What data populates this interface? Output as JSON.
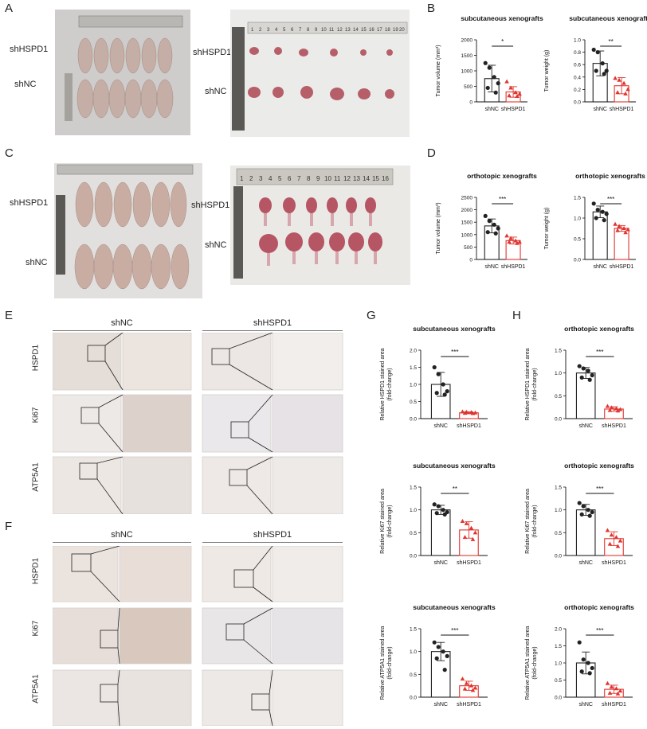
{
  "panels": {
    "A": "A",
    "B": "B",
    "C": "C",
    "D": "D",
    "E": "E",
    "F": "F",
    "G": "G",
    "H": "H"
  },
  "photo_labels": {
    "shHSPD1": "shHSPD1",
    "shNC": "shNC"
  },
  "ruler_numbers": [
    "1",
    "2",
    "3",
    "4",
    "5",
    "6",
    "7",
    "8",
    "9",
    "10",
    "11",
    "12",
    "13",
    "14",
    "15",
    "16",
    "17",
    "18",
    "19",
    "20"
  ],
  "ihc": {
    "headers": [
      "shNC",
      "shHSPD1"
    ],
    "rows": [
      "HSPD1",
      "Ki67",
      "ATP5A1"
    ]
  },
  "colors": {
    "shNC": "#222222",
    "shHSPD1": "#e0342f",
    "tissue_bg": "#e9e2dc",
    "tissue_dark": "#c9b9ad",
    "mouse": "#c9b0a8",
    "tumor": "#b65563"
  },
  "chart_data": [
    {
      "id": "B1",
      "type": "bar",
      "title": "subcutaneous xenografts",
      "ylabel": "Tumor volume (mm³)",
      "categories": [
        "shNC",
        "shHSPD1"
      ],
      "values": [
        750,
        320
      ],
      "errors": [
        430,
        170
      ],
      "ylim": [
        0,
        2000
      ],
      "yticks": [
        "0",
        "500",
        "1000",
        "1500",
        "2000"
      ],
      "significance": "*",
      "points": [
        [
          1250,
          1100,
          800,
          600,
          450,
          300
        ],
        [
          650,
          450,
          300,
          250,
          200,
          180
        ]
      ]
    },
    {
      "id": "B2",
      "type": "bar",
      "title": "subcutaneous xenografts",
      "ylabel": "Tumor weight (g)",
      "categories": [
        "shNC",
        "shHSPD1"
      ],
      "values": [
        0.62,
        0.26
      ],
      "errors": [
        0.2,
        0.13
      ],
      "ylim": [
        0,
        1.0
      ],
      "yticks": [
        "0.0",
        "0.2",
        "0.4",
        "0.6",
        "0.8",
        "1.0"
      ],
      "significance": "**",
      "points": [
        [
          0.84,
          0.8,
          0.62,
          0.5,
          0.5,
          0.45
        ],
        [
          0.38,
          0.35,
          0.3,
          0.2,
          0.15,
          0.13
        ]
      ]
    },
    {
      "id": "D1",
      "type": "bar",
      "title": "orthotopic xenografts",
      "ylabel": "Tumor volume (mm³)",
      "categories": [
        "shNC",
        "shHSPD1"
      ],
      "values": [
        1350,
        760
      ],
      "errors": [
        280,
        140
      ],
      "ylim": [
        0,
        2500
      ],
      "yticks": [
        "0",
        "500",
        "1000",
        "1500",
        "2000",
        "2500"
      ],
      "significance": "***",
      "points": [
        [
          1750,
          1550,
          1400,
          1250,
          1100,
          1050
        ],
        [
          950,
          850,
          750,
          700,
          700,
          650
        ]
      ]
    },
    {
      "id": "D2",
      "type": "bar",
      "title": "orthotopic xenografts",
      "ylabel": "Tumor weight (g)",
      "categories": [
        "shNC",
        "shHSPD1"
      ],
      "values": [
        1.15,
        0.75
      ],
      "errors": [
        0.14,
        0.07
      ],
      "ylim": [
        0,
        1.5
      ],
      "yticks": [
        "0.0",
        "0.5",
        "1.0",
        "1.5"
      ],
      "significance": "***",
      "points": [
        [
          1.35,
          1.2,
          1.15,
          1.1,
          1.0,
          0.95
        ],
        [
          0.85,
          0.8,
          0.75,
          0.72,
          0.7,
          0.65
        ]
      ]
    },
    {
      "id": "G1",
      "type": "bar",
      "title": "subcutaneous xenografts",
      "ylabel": "Relative HSPD1 stained area\n(fold-change)",
      "categories": [
        "shNC",
        "shHSPD1"
      ],
      "values": [
        1.0,
        0.17
      ],
      "errors": [
        0.35,
        0.03
      ],
      "ylim": [
        0,
        2.0
      ],
      "yticks": [
        "0.0",
        "0.5",
        "1.0",
        "1.5",
        "2.0"
      ],
      "significance": "***",
      "points": [
        [
          1.5,
          1.3,
          1.0,
          0.8,
          0.75,
          0.7
        ],
        [
          0.2,
          0.19,
          0.18,
          0.17,
          0.16,
          0.15
        ]
      ]
    },
    {
      "id": "G2",
      "type": "bar",
      "title": "subcutaneous xenografts",
      "ylabel": "Relative Ki67 stained area\n(fold-change)",
      "categories": [
        "shNC",
        "shHSPD1"
      ],
      "values": [
        1.0,
        0.56
      ],
      "errors": [
        0.1,
        0.18
      ],
      "ylim": [
        0,
        1.5
      ],
      "yticks": [
        "0.0",
        "0.5",
        "1.0",
        "1.5"
      ],
      "significance": "**",
      "points": [
        [
          1.12,
          1.08,
          1.0,
          0.95,
          0.93,
          0.9
        ],
        [
          0.75,
          0.7,
          0.6,
          0.5,
          0.4,
          0.35
        ]
      ]
    },
    {
      "id": "G3",
      "type": "bar",
      "title": "subcutaneous xenografts",
      "ylabel": "Relative ATP5A1 stained area\n(fold-change)",
      "categories": [
        "shNC",
        "shHSPD1"
      ],
      "values": [
        1.0,
        0.25
      ],
      "errors": [
        0.2,
        0.1
      ],
      "ylim": [
        0,
        1.5
      ],
      "yticks": [
        "0.0",
        "0.5",
        "1.0",
        "1.5"
      ],
      "significance": "***",
      "points": [
        [
          1.2,
          1.1,
          1.0,
          0.9,
          0.85,
          0.6
        ],
        [
          0.4,
          0.3,
          0.25,
          0.2,
          0.18,
          0.15
        ]
      ]
    },
    {
      "id": "H1",
      "type": "bar",
      "title": "orthotopic xenografts",
      "ylabel": "Relative HSPD1 stained area\n(fold-change)",
      "categories": [
        "shNC",
        "shHSPD1"
      ],
      "values": [
        1.0,
        0.21
      ],
      "errors": [
        0.12,
        0.05
      ],
      "ylim": [
        0,
        1.5
      ],
      "yticks": [
        "0.0",
        "0.5",
        "1.0",
        "1.5"
      ],
      "significance": "***",
      "points": [
        [
          1.15,
          1.1,
          1.05,
          0.95,
          0.9,
          0.85
        ],
        [
          0.27,
          0.24,
          0.22,
          0.2,
          0.18,
          0.17
        ]
      ]
    },
    {
      "id": "H2",
      "type": "bar",
      "title": "orthotopic xenografts",
      "ylabel": "Relative Ki67 stained area\n(fold-change)",
      "categories": [
        "shNC",
        "shHSPD1"
      ],
      "values": [
        1.0,
        0.37
      ],
      "errors": [
        0.12,
        0.15
      ],
      "ylim": [
        0,
        1.5
      ],
      "yticks": [
        "0.0",
        "0.5",
        "1.0",
        "1.5"
      ],
      "significance": "***",
      "points": [
        [
          1.15,
          1.08,
          1.0,
          0.95,
          0.9,
          0.87
        ],
        [
          0.55,
          0.45,
          0.4,
          0.32,
          0.25,
          0.2
        ]
      ]
    },
    {
      "id": "H3",
      "type": "bar",
      "title": "orthotopic xenografts",
      "ylabel": "Relative ATP5A1 stained area\n(fold-change)",
      "categories": [
        "shNC",
        "shHSPD1"
      ],
      "values": [
        1.0,
        0.23
      ],
      "errors": [
        0.32,
        0.12
      ],
      "ylim": [
        0,
        2.0
      ],
      "yticks": [
        "0.0",
        "0.5",
        "1.0",
        "1.5",
        "2.0"
      ],
      "significance": "***",
      "points": [
        [
          1.6,
          1.1,
          1.0,
          0.85,
          0.75,
          0.7
        ],
        [
          0.4,
          0.3,
          0.25,
          0.18,
          0.12,
          0.1
        ]
      ]
    }
  ]
}
